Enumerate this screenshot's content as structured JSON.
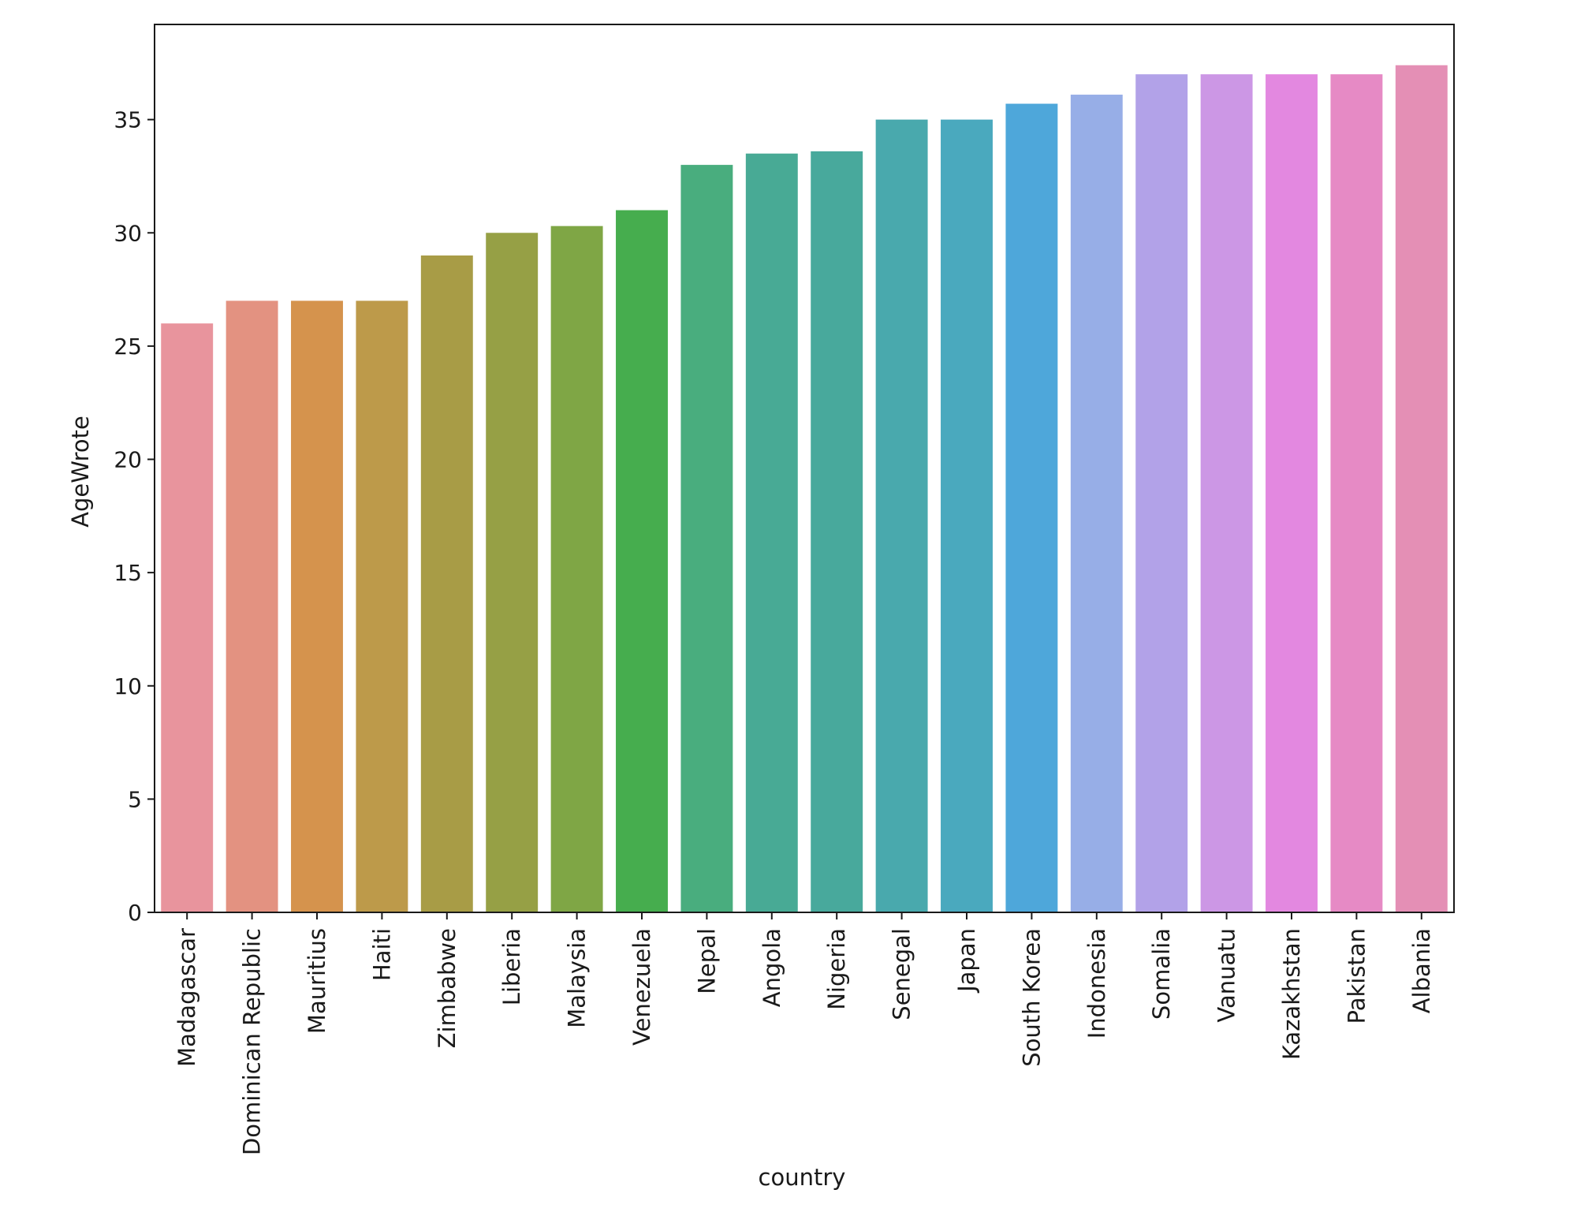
{
  "chart_data": {
    "type": "bar",
    "title": "",
    "xlabel": "country",
    "ylabel": "AgeWrote",
    "categories": [
      "Madagascar",
      "Dominican Republic",
      "Mauritius",
      "Haiti",
      "Zimbabwe",
      "Liberia",
      "Malaysia",
      "Venezuela",
      "Nepal",
      "Angola",
      "Nigeria",
      "Senegal",
      "Japan",
      "South Korea",
      "Indonesia",
      "Somalia",
      "Vanuatu",
      "Kazakhstan",
      "Pakistan",
      "Albania"
    ],
    "values": [
      26,
      27,
      27,
      27,
      29,
      30,
      30.3,
      31,
      33,
      33.5,
      33.6,
      35,
      35,
      35.7,
      36.1,
      37,
      37,
      37,
      37,
      37.4
    ],
    "colors": [
      "#e8949d",
      "#e39281",
      "#d5934d",
      "#bd9a4a",
      "#a89c46",
      "#96a045",
      "#7fa645",
      "#46ad4e",
      "#49ad7e",
      "#48aa95",
      "#48a99c",
      "#49a9ad",
      "#4aa9be",
      "#4ea7da",
      "#97aee7",
      "#b2a2e8",
      "#cc97e5",
      "#e388e0",
      "#e68ac5",
      "#e48fb5"
    ],
    "ylim": [
      0,
      39.2
    ],
    "yticks": [
      0,
      5,
      10,
      15,
      20,
      25,
      30,
      35
    ],
    "grid": false,
    "legend": "none"
  }
}
